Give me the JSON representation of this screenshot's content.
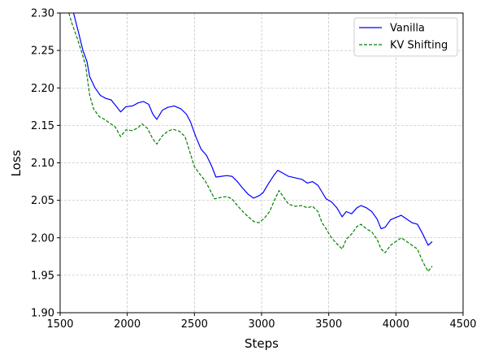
{
  "chart_data": {
    "type": "line",
    "title": "",
    "xlabel": "Steps",
    "ylabel": "Loss",
    "xlim": [
      1500,
      4500
    ],
    "ylim": [
      1.9,
      2.3
    ],
    "xticks": [
      1500,
      2000,
      2500,
      3000,
      3500,
      4000,
      4500
    ],
    "yticks": [
      1.9,
      1.95,
      2.0,
      2.05,
      2.1,
      2.15,
      2.2,
      2.25,
      2.3
    ],
    "xtick_labels": [
      "1500",
      "2000",
      "2500",
      "3000",
      "3500",
      "4000",
      "4500"
    ],
    "ytick_labels": [
      "1.90",
      "1.95",
      "2.00",
      "2.05",
      "2.10",
      "2.15",
      "2.20",
      "2.25",
      "2.30"
    ],
    "grid": true,
    "legend_position": "top-right",
    "series": [
      {
        "name": "Vanilla",
        "color": "#0000ff",
        "style": "solid",
        "points": [
          [
            1560,
            2.33
          ],
          [
            1600,
            2.3
          ],
          [
            1640,
            2.272
          ],
          [
            1670,
            2.25
          ],
          [
            1700,
            2.235
          ],
          [
            1720,
            2.215
          ],
          [
            1760,
            2.2
          ],
          [
            1800,
            2.19
          ],
          [
            1840,
            2.186
          ],
          [
            1880,
            2.184
          ],
          [
            1920,
            2.175
          ],
          [
            1950,
            2.168
          ],
          [
            1990,
            2.175
          ],
          [
            2040,
            2.176
          ],
          [
            2080,
            2.18
          ],
          [
            2120,
            2.182
          ],
          [
            2160,
            2.178
          ],
          [
            2190,
            2.165
          ],
          [
            2220,
            2.158
          ],
          [
            2260,
            2.17
          ],
          [
            2300,
            2.174
          ],
          [
            2350,
            2.176
          ],
          [
            2400,
            2.172
          ],
          [
            2440,
            2.165
          ],
          [
            2470,
            2.155
          ],
          [
            2510,
            2.135
          ],
          [
            2550,
            2.118
          ],
          [
            2590,
            2.11
          ],
          [
            2630,
            2.095
          ],
          [
            2660,
            2.081
          ],
          [
            2700,
            2.082
          ],
          [
            2740,
            2.083
          ],
          [
            2780,
            2.082
          ],
          [
            2820,
            2.075
          ],
          [
            2860,
            2.066
          ],
          [
            2900,
            2.058
          ],
          [
            2940,
            2.053
          ],
          [
            2980,
            2.056
          ],
          [
            3010,
            2.06
          ],
          [
            3050,
            2.072
          ],
          [
            3090,
            2.083
          ],
          [
            3120,
            2.09
          ],
          [
            3160,
            2.086
          ],
          [
            3200,
            2.082
          ],
          [
            3250,
            2.08
          ],
          [
            3300,
            2.078
          ],
          [
            3340,
            2.073
          ],
          [
            3380,
            2.075
          ],
          [
            3420,
            2.07
          ],
          [
            3450,
            2.061
          ],
          [
            3480,
            2.052
          ],
          [
            3520,
            2.048
          ],
          [
            3560,
            2.04
          ],
          [
            3600,
            2.028
          ],
          [
            3630,
            2.035
          ],
          [
            3670,
            2.032
          ],
          [
            3710,
            2.04
          ],
          [
            3740,
            2.043
          ],
          [
            3780,
            2.04
          ],
          [
            3820,
            2.035
          ],
          [
            3860,
            2.025
          ],
          [
            3890,
            2.012
          ],
          [
            3920,
            2.014
          ],
          [
            3960,
            2.024
          ],
          [
            4000,
            2.027
          ],
          [
            4040,
            2.03
          ],
          [
            4080,
            2.025
          ],
          [
            4120,
            2.02
          ],
          [
            4160,
            2.018
          ],
          [
            4200,
            2.005
          ],
          [
            4240,
            1.99
          ],
          [
            4270,
            1.995
          ]
        ]
      },
      {
        "name": "KV Shifting",
        "color": "#008000",
        "style": "dashed",
        "points": [
          [
            1565,
            2.3
          ],
          [
            1590,
            2.285
          ],
          [
            1630,
            2.265
          ],
          [
            1660,
            2.248
          ],
          [
            1690,
            2.23
          ],
          [
            1720,
            2.19
          ],
          [
            1750,
            2.172
          ],
          [
            1790,
            2.162
          ],
          [
            1830,
            2.158
          ],
          [
            1870,
            2.153
          ],
          [
            1910,
            2.148
          ],
          [
            1950,
            2.135
          ],
          [
            1990,
            2.144
          ],
          [
            2040,
            2.143
          ],
          [
            2080,
            2.147
          ],
          [
            2110,
            2.152
          ],
          [
            2150,
            2.146
          ],
          [
            2190,
            2.132
          ],
          [
            2220,
            2.125
          ],
          [
            2260,
            2.136
          ],
          [
            2300,
            2.142
          ],
          [
            2340,
            2.145
          ],
          [
            2390,
            2.142
          ],
          [
            2430,
            2.135
          ],
          [
            2460,
            2.118
          ],
          [
            2500,
            2.095
          ],
          [
            2540,
            2.085
          ],
          [
            2580,
            2.076
          ],
          [
            2610,
            2.066
          ],
          [
            2650,
            2.052
          ],
          [
            2700,
            2.054
          ],
          [
            2740,
            2.055
          ],
          [
            2780,
            2.052
          ],
          [
            2820,
            2.043
          ],
          [
            2860,
            2.035
          ],
          [
            2900,
            2.028
          ],
          [
            2940,
            2.022
          ],
          [
            2980,
            2.02
          ],
          [
            3020,
            2.026
          ],
          [
            3060,
            2.035
          ],
          [
            3090,
            2.048
          ],
          [
            3130,
            2.063
          ],
          [
            3160,
            2.055
          ],
          [
            3200,
            2.045
          ],
          [
            3250,
            2.042
          ],
          [
            3300,
            2.043
          ],
          [
            3340,
            2.04
          ],
          [
            3380,
            2.042
          ],
          [
            3420,
            2.035
          ],
          [
            3450,
            2.02
          ],
          [
            3480,
            2.012
          ],
          [
            3520,
            2.0
          ],
          [
            3560,
            1.992
          ],
          [
            3600,
            1.985
          ],
          [
            3630,
            1.998
          ],
          [
            3670,
            2.005
          ],
          [
            3710,
            2.015
          ],
          [
            3740,
            2.018
          ],
          [
            3780,
            2.012
          ],
          [
            3820,
            2.008
          ],
          [
            3860,
            1.998
          ],
          [
            3890,
            1.985
          ],
          [
            3920,
            1.98
          ],
          [
            3960,
            1.99
          ],
          [
            4000,
            1.995
          ],
          [
            4040,
            2.0
          ],
          [
            4080,
            1.995
          ],
          [
            4120,
            1.99
          ],
          [
            4160,
            1.985
          ],
          [
            4200,
            1.968
          ],
          [
            4240,
            1.955
          ],
          [
            4270,
            1.962
          ]
        ]
      }
    ]
  }
}
